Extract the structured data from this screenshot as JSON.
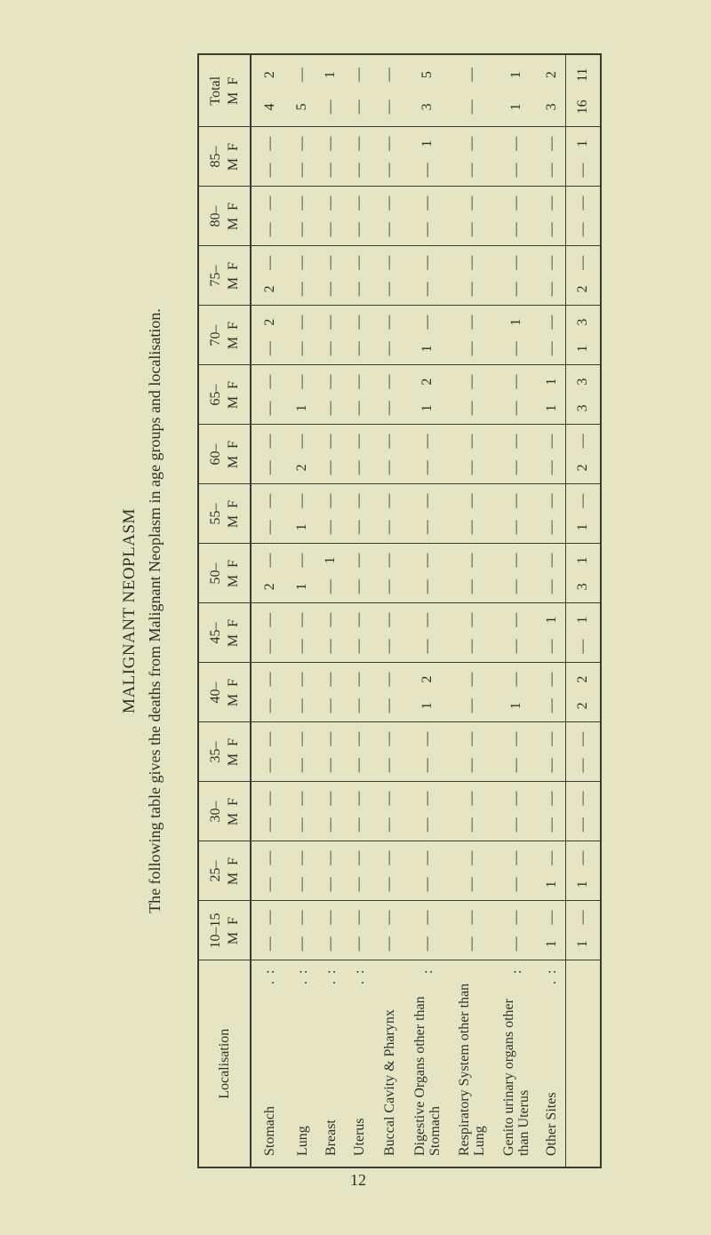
{
  "heading": "MALIGNANT NEOPLASM",
  "intro": "The following table gives the deaths from Malignant Neoplasm in age groups and localisation.",
  "table": {
    "localisation_header": "Localisation",
    "sex_labels": [
      "M",
      "F"
    ],
    "age_groups": [
      "10–15",
      "25–",
      "30–",
      "35–",
      "40–",
      "45–",
      "50–",
      "55–",
      "60–",
      "65–",
      "70–",
      "75–",
      "80–",
      "85–",
      "Total"
    ],
    "rows": [
      {
        "label": "Stomach",
        "leader": ". :",
        "values": [
          [
            "—",
            "—"
          ],
          [
            "—",
            "—"
          ],
          [
            "—",
            "—"
          ],
          [
            "—",
            "—"
          ],
          [
            "—",
            "—"
          ],
          [
            "—",
            "—"
          ],
          [
            "2",
            "—"
          ],
          [
            "—",
            "—"
          ],
          [
            "—",
            "—"
          ],
          [
            "—",
            "—"
          ],
          [
            "—",
            "2"
          ],
          [
            "2",
            "—"
          ],
          [
            "—",
            "—"
          ],
          [
            "—",
            "—"
          ],
          [
            "4",
            "2"
          ]
        ]
      },
      {
        "label": "Lung",
        "leader": ". :",
        "values": [
          [
            "—",
            "—"
          ],
          [
            "—",
            "—"
          ],
          [
            "—",
            "—"
          ],
          [
            "—",
            "—"
          ],
          [
            "—",
            "—"
          ],
          [
            "—",
            "—"
          ],
          [
            "1",
            "—"
          ],
          [
            "1",
            "—"
          ],
          [
            "2",
            "—"
          ],
          [
            "1",
            "—"
          ],
          [
            "—",
            "—"
          ],
          [
            "—",
            "—"
          ],
          [
            "—",
            "—"
          ],
          [
            "—",
            "—"
          ],
          [
            "5",
            "—"
          ]
        ]
      },
      {
        "label": "Breast",
        "leader": ". :",
        "values": [
          [
            "—",
            "—"
          ],
          [
            "—",
            "—"
          ],
          [
            "—",
            "—"
          ],
          [
            "—",
            "—"
          ],
          [
            "—",
            "—"
          ],
          [
            "—",
            "—"
          ],
          [
            "—",
            "1"
          ],
          [
            "—",
            "—"
          ],
          [
            "—",
            "—"
          ],
          [
            "—",
            "—"
          ],
          [
            "—",
            "—"
          ],
          [
            "—",
            "—"
          ],
          [
            "—",
            "—"
          ],
          [
            "—",
            "—"
          ],
          [
            "—",
            "1"
          ]
        ]
      },
      {
        "label": "Uterus",
        "leader": ". :",
        "values": [
          [
            "—",
            "—"
          ],
          [
            "—",
            "—"
          ],
          [
            "—",
            "—"
          ],
          [
            "—",
            "—"
          ],
          [
            "—",
            "—"
          ],
          [
            "—",
            "—"
          ],
          [
            "—",
            "—"
          ],
          [
            "—",
            "—"
          ],
          [
            "—",
            "—"
          ],
          [
            "—",
            "—"
          ],
          [
            "—",
            "—"
          ],
          [
            "—",
            "—"
          ],
          [
            "—",
            "—"
          ],
          [
            "—",
            "—"
          ],
          [
            "—",
            "—"
          ]
        ]
      },
      {
        "label": "Buccal Cavity & Pharynx",
        "leader": "",
        "values": [
          [
            "—",
            "—"
          ],
          [
            "—",
            "—"
          ],
          [
            "—",
            "—"
          ],
          [
            "—",
            "—"
          ],
          [
            "—",
            "—"
          ],
          [
            "—",
            "—"
          ],
          [
            "—",
            "—"
          ],
          [
            "—",
            "—"
          ],
          [
            "—",
            "—"
          ],
          [
            "—",
            "—"
          ],
          [
            "—",
            "—"
          ],
          [
            "—",
            "—"
          ],
          [
            "—",
            "—"
          ],
          [
            "—",
            "—"
          ],
          [
            "—",
            "—"
          ]
        ]
      },
      {
        "label": "Digestive Organs other than Stomach",
        "leader": ":",
        "values": [
          [
            "—",
            "—"
          ],
          [
            "—",
            "—"
          ],
          [
            "—",
            "—"
          ],
          [
            "—",
            "—"
          ],
          [
            "1",
            "2"
          ],
          [
            "—",
            "—"
          ],
          [
            "—",
            "—"
          ],
          [
            "—",
            "—"
          ],
          [
            "—",
            "—"
          ],
          [
            "1",
            "2"
          ],
          [
            "1",
            "—"
          ],
          [
            "—",
            "—"
          ],
          [
            "—",
            "—"
          ],
          [
            "—",
            "1"
          ],
          [
            "3",
            "5"
          ]
        ]
      },
      {
        "label": "Respiratory System other than Lung",
        "leader": "",
        "values": [
          [
            "—",
            "—"
          ],
          [
            "—",
            "—"
          ],
          [
            "—",
            "—"
          ],
          [
            "—",
            "—"
          ],
          [
            "—",
            "—"
          ],
          [
            "—",
            "—"
          ],
          [
            "—",
            "—"
          ],
          [
            "—",
            "—"
          ],
          [
            "—",
            "—"
          ],
          [
            "—",
            "—"
          ],
          [
            "—",
            "—"
          ],
          [
            "—",
            "—"
          ],
          [
            "—",
            "—"
          ],
          [
            "—",
            "—"
          ],
          [
            "—",
            "—"
          ]
        ]
      },
      {
        "label": "Genito urinary organs other than Uterus",
        "leader": ":",
        "values": [
          [
            "—",
            "—"
          ],
          [
            "—",
            "—"
          ],
          [
            "—",
            "—"
          ],
          [
            "—",
            "—"
          ],
          [
            "1",
            "—"
          ],
          [
            "—",
            "—"
          ],
          [
            "—",
            "—"
          ],
          [
            "—",
            "—"
          ],
          [
            "—",
            "—"
          ],
          [
            "—",
            "—"
          ],
          [
            "—",
            "1"
          ],
          [
            "—",
            "—"
          ],
          [
            "—",
            "—"
          ],
          [
            "—",
            "—"
          ],
          [
            "1",
            "1"
          ]
        ]
      },
      {
        "label": "Other Sites",
        "leader": ". :",
        "values": [
          [
            "1",
            "—"
          ],
          [
            "1",
            "—"
          ],
          [
            "—",
            "—"
          ],
          [
            "—",
            "—"
          ],
          [
            "—",
            "—"
          ],
          [
            "—",
            "1"
          ],
          [
            "—",
            "—"
          ],
          [
            "—",
            "—"
          ],
          [
            "—",
            "—"
          ],
          [
            "1",
            "1"
          ],
          [
            "—",
            "—"
          ],
          [
            "—",
            "—"
          ],
          [
            "—",
            "—"
          ],
          [
            "—",
            "—"
          ],
          [
            "3",
            "2"
          ]
        ]
      }
    ],
    "totals": [
      [
        "1",
        "—"
      ],
      [
        "1",
        "—"
      ],
      [
        "—",
        "—"
      ],
      [
        "—",
        "—"
      ],
      [
        "2",
        "2"
      ],
      [
        "—",
        "1"
      ],
      [
        "3",
        "1"
      ],
      [
        "1",
        "—"
      ],
      [
        "2",
        "—"
      ],
      [
        "3",
        "3"
      ],
      [
        "1",
        "3"
      ],
      [
        "2",
        "—"
      ],
      [
        "—",
        "—"
      ],
      [
        "—",
        "1"
      ],
      [
        "16",
        "11"
      ]
    ]
  },
  "page_number": "12"
}
